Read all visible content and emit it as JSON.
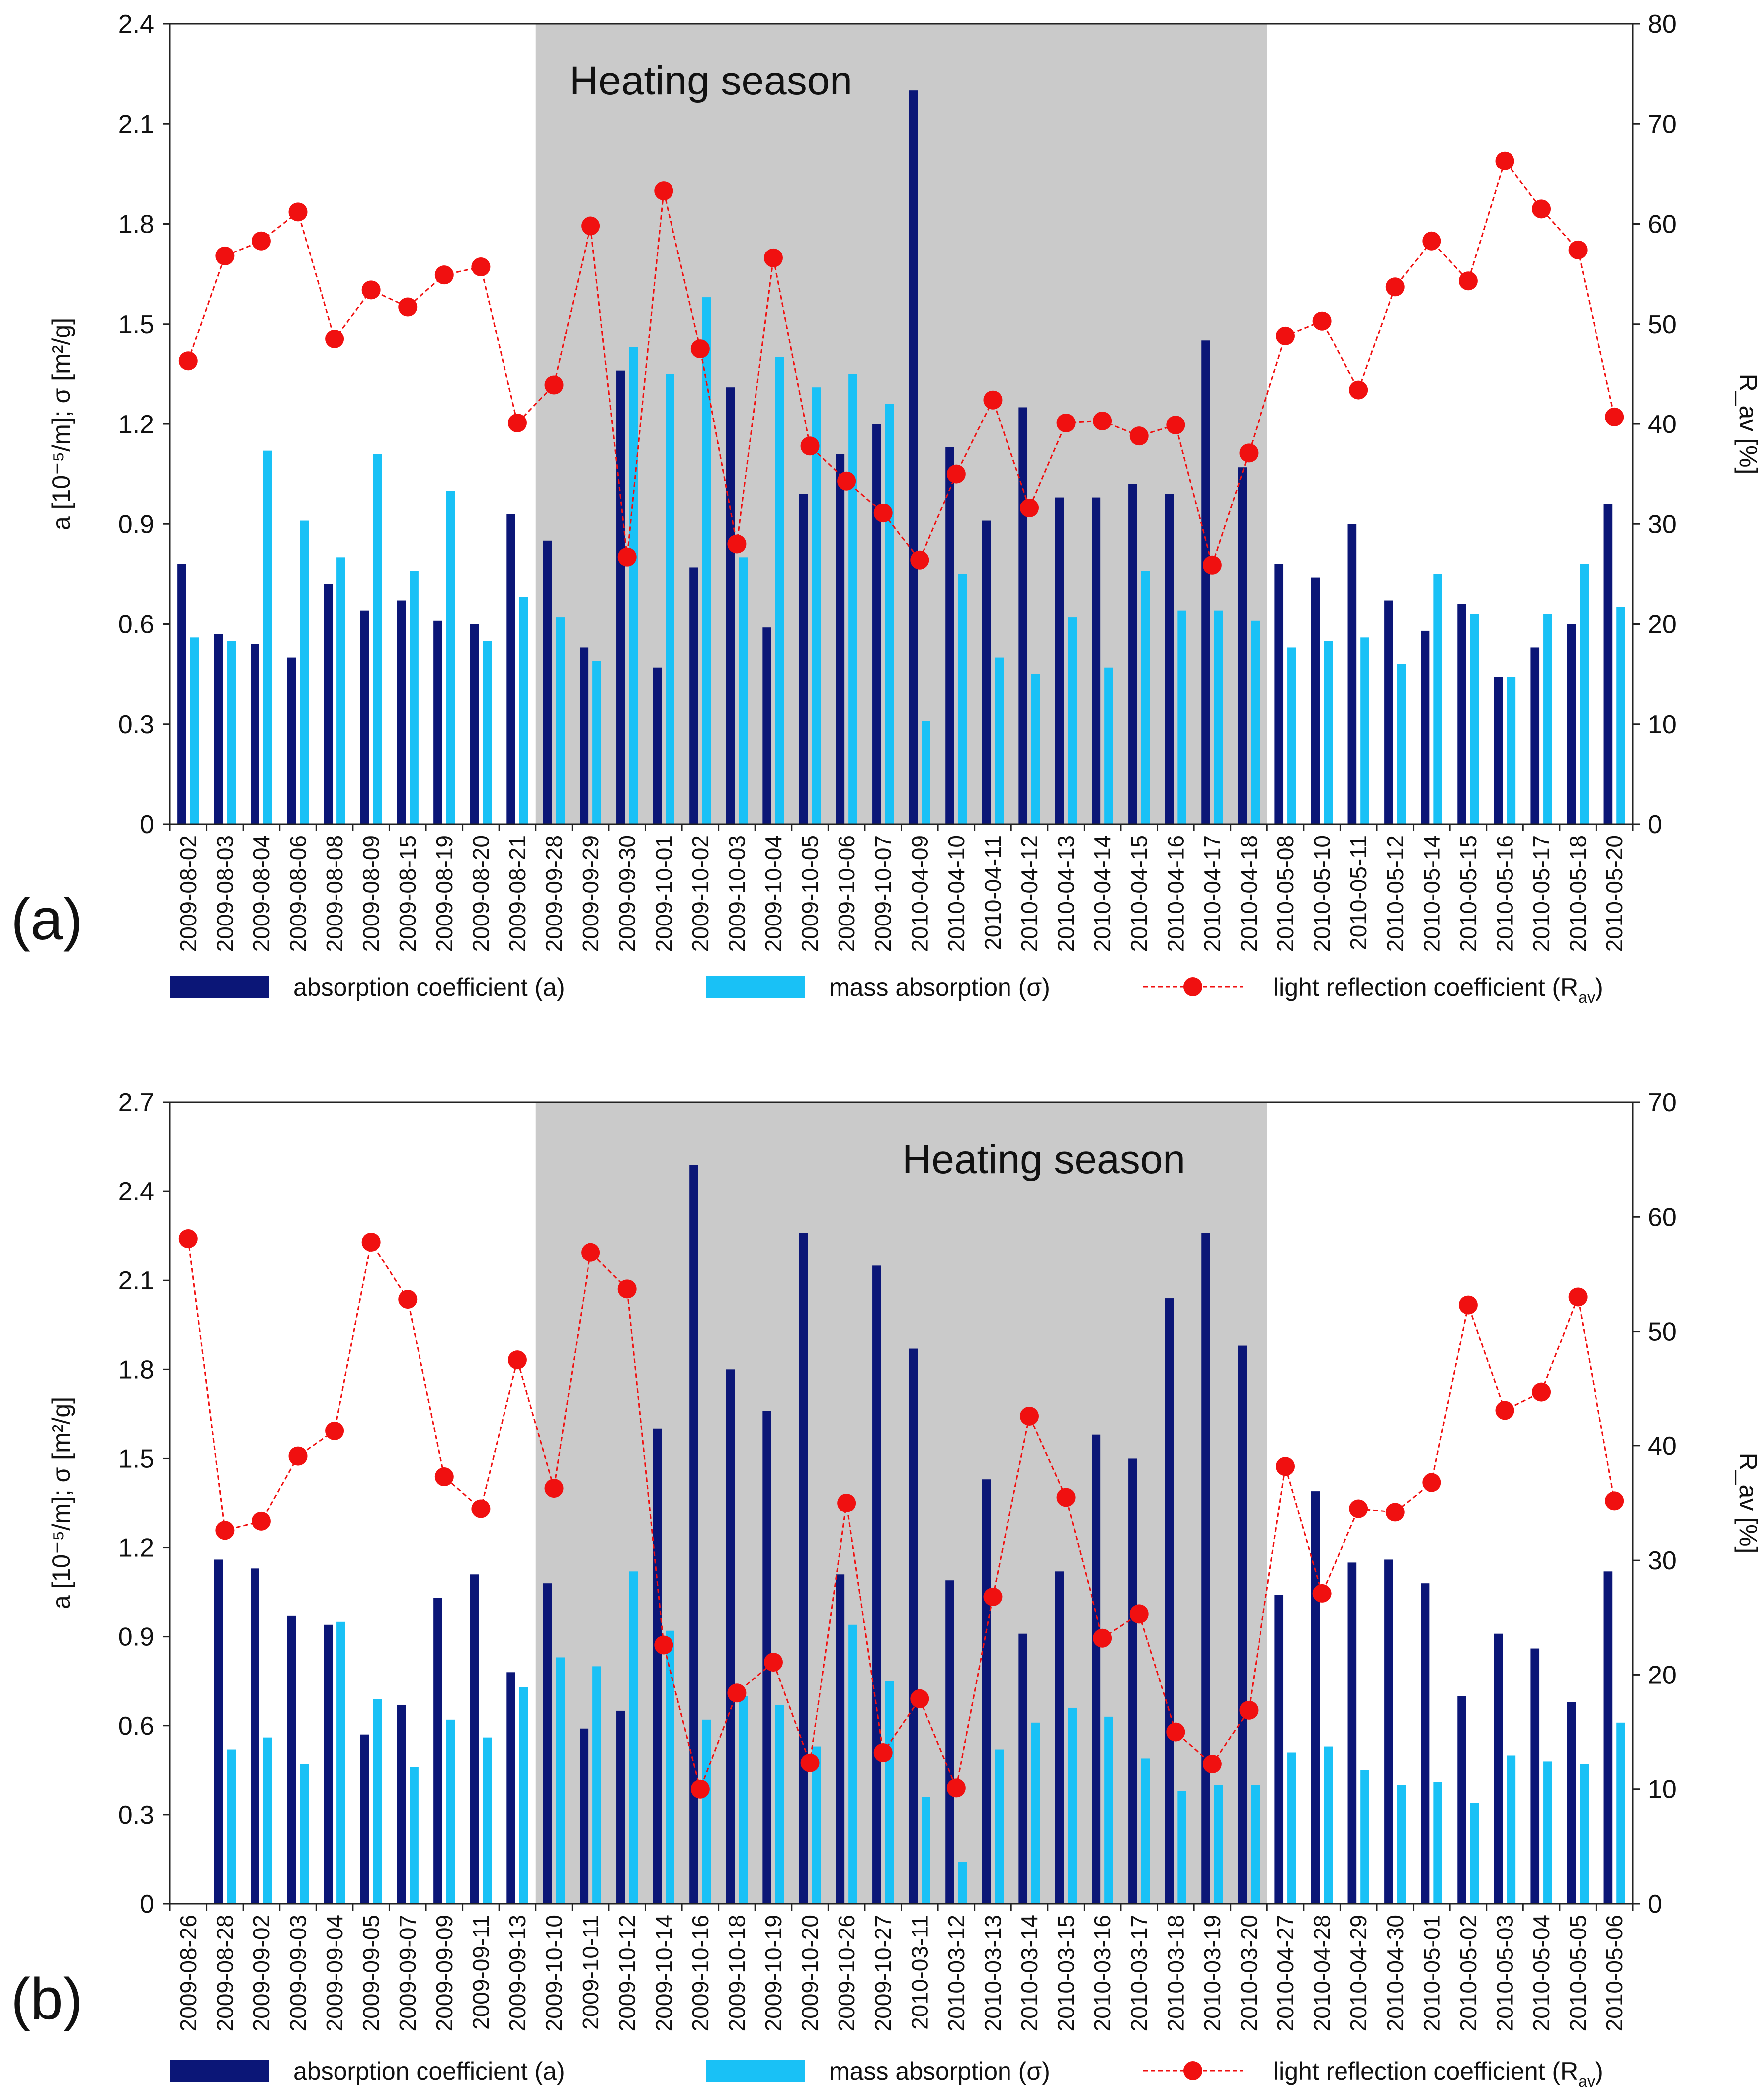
{
  "colors": {
    "absorption": "#0b1677",
    "mass": "#19c1f6",
    "reflection": "#f01010",
    "heating_bg": "#cacaca"
  },
  "legend": {
    "absorption_label": "absorption coefficient  (a)",
    "mass_label": "mass absorption (σ)",
    "reflection_label": "light reflection coefficient (R",
    "reflection_sub": "av",
    "reflection_close": ")"
  },
  "chart_data": [
    {
      "type": "bar",
      "panel_label": "(a)",
      "annotation": "Heating season",
      "ylabel_left": "a [10⁻⁵/m]; σ [m²/g]",
      "ylabel_right": "R_av [%]",
      "ylim_left": [
        0,
        2.4
      ],
      "ylim_right": [
        0,
        80
      ],
      "yticks_left": [
        "0",
        "0.3",
        "0.6",
        "0.9",
        "1.2",
        "1.5",
        "1.8",
        "2.1",
        "2.4"
      ],
      "yticks_right": [
        "0",
        "10",
        "20",
        "30",
        "40",
        "50",
        "60",
        "70",
        "80"
      ],
      "heating_season": {
        "from": "2009-09-28",
        "to": "2010-04-18"
      },
      "categories": [
        "2009-08-02",
        "2009-08-03",
        "2009-08-04",
        "2009-08-06",
        "2009-08-08",
        "2009-08-09",
        "2009-08-15",
        "2009-08-19",
        "2009-08-20",
        "2009-08-21",
        "2009-09-28",
        "2009-09-29",
        "2009-09-30",
        "2009-10-01",
        "2009-10-02",
        "2009-10-03",
        "2009-10-04",
        "2009-10-05",
        "2009-10-06",
        "2009-10-07",
        "2010-04-09",
        "2010-04-10",
        "2010-04-11",
        "2010-04-12",
        "2010-04-13",
        "2010-04-14",
        "2010-04-15",
        "2010-04-16",
        "2010-04-17",
        "2010-04-18",
        "2010-05-08",
        "2010-05-10",
        "2010-05-11",
        "2010-05-12",
        "2010-05-14",
        "2010-05-15",
        "2010-05-16",
        "2010-05-17",
        "2010-05-18",
        "2010-05-20"
      ],
      "series": [
        {
          "name": "absorption coefficient  (a)",
          "axis": "left",
          "values": [
            0.78,
            0.57,
            0.54,
            0.5,
            0.72,
            0.64,
            0.67,
            0.61,
            0.6,
            0.93,
            0.85,
            0.53,
            1.36,
            0.47,
            0.77,
            1.31,
            0.59,
            0.99,
            1.11,
            1.2,
            2.2,
            1.13,
            0.91,
            1.25,
            0.98,
            0.98,
            1.02,
            0.99,
            1.45,
            1.07,
            0.78,
            0.74,
            0.9,
            0.67,
            0.58,
            0.66,
            0.44,
            0.53,
            0.6,
            0.96
          ]
        },
        {
          "name": "mass absorption (σ)",
          "axis": "left",
          "values": [
            0.56,
            0.55,
            1.12,
            0.91,
            0.8,
            1.11,
            0.76,
            1.0,
            0.55,
            0.68,
            0.62,
            0.49,
            1.43,
            1.35,
            1.58,
            0.8,
            1.4,
            1.31,
            1.35,
            1.26,
            0.31,
            0.75,
            0.5,
            0.45,
            0.62,
            0.47,
            0.76,
            0.64,
            0.64,
            0.61,
            0.53,
            0.55,
            0.56,
            0.48,
            0.75,
            0.63,
            0.44,
            0.63,
            0.78,
            0.65
          ]
        },
        {
          "name": "light reflection coefficient (R_av)",
          "axis": "right",
          "values": [
            46.3,
            56.8,
            58.3,
            61.2,
            48.5,
            53.4,
            51.7,
            54.9,
            55.7,
            40.1,
            43.9,
            59.8,
            26.7,
            63.3,
            47.5,
            28.0,
            56.6,
            37.8,
            34.3,
            31.1,
            26.4,
            35.0,
            42.4,
            31.6,
            40.1,
            40.3,
            38.8,
            39.9,
            25.9,
            37.1,
            48.8,
            50.3,
            43.4,
            53.7,
            58.3,
            54.3,
            66.3,
            61.5,
            57.4,
            40.7
          ]
        }
      ]
    },
    {
      "type": "bar",
      "panel_label": "(b)",
      "annotation": "Heating season",
      "ylabel_left": "a [10⁻⁵/m]; σ [m²/g]",
      "ylabel_right": "R_av [%]",
      "ylim_left": [
        0,
        2.7
      ],
      "ylim_right": [
        0,
        70
      ],
      "yticks_left": [
        "0",
        "0.3",
        "0.6",
        "0.9",
        "1.2",
        "1.5",
        "1.8",
        "2.1",
        "2.4",
        "2.7"
      ],
      "yticks_right": [
        "0",
        "10",
        "20",
        "30",
        "40",
        "50",
        "60",
        "70"
      ],
      "heating_season": {
        "from": "2009-10-10",
        "to": "2010-03-20"
      },
      "categories": [
        "2009-08-26",
        "2009-08-28",
        "2009-09-02",
        "2009-09-03",
        "2009-09-04",
        "2009-09-05",
        "2009-09-07",
        "2009-09-09",
        "2009-09-11",
        "2009-09-13",
        "2009-10-10",
        "2009-10-11",
        "2009-10-12",
        "2009-10-14",
        "2009-10-16",
        "2009-10-18",
        "2009-10-19",
        "2009-10-20",
        "2009-10-26",
        "2009-10-27",
        "2010-03-11",
        "2010-03-12",
        "2010-03-13",
        "2010-03-14",
        "2010-03-15",
        "2010-03-16",
        "2010-03-17",
        "2010-03-18",
        "2010-03-19",
        "2010-03-20",
        "2010-04-27",
        "2010-04-28",
        "2010-04-29",
        "2010-04-30",
        "2010-05-01",
        "2010-05-02",
        "2010-05-03",
        "2010-05-04",
        "2010-05-05",
        "2010-05-06"
      ],
      "series": [
        {
          "name": "absorption coefficient  (a)",
          "axis": "left",
          "values": [
            null,
            1.16,
            1.13,
            0.97,
            0.94,
            0.57,
            0.67,
            1.03,
            1.11,
            0.78,
            1.08,
            0.59,
            0.65,
            1.6,
            2.49,
            1.8,
            1.66,
            2.26,
            1.11,
            2.15,
            1.87,
            1.09,
            1.43,
            0.91,
            1.12,
            1.58,
            1.5,
            2.04,
            2.26,
            1.88,
            1.04,
            1.39,
            1.15,
            1.16,
            1.08,
            0.7,
            0.91,
            0.86,
            0.68,
            1.12
          ]
        },
        {
          "name": "mass absorption (σ)",
          "axis": "left",
          "values": [
            null,
            0.52,
            0.56,
            0.47,
            0.95,
            0.69,
            0.46,
            0.62,
            0.56,
            0.73,
            0.83,
            0.8,
            1.12,
            0.92,
            0.62,
            0.7,
            0.67,
            0.53,
            0.94,
            0.75,
            0.36,
            0.14,
            0.52,
            0.61,
            0.66,
            0.63,
            0.49,
            0.38,
            0.4,
            0.4,
            0.51,
            0.53,
            0.45,
            0.4,
            0.41,
            0.34,
            0.5,
            0.48,
            0.47,
            0.61
          ]
        },
        {
          "name": "light reflection coefficient (R_av)",
          "axis": "right",
          "values": [
            58.1,
            32.6,
            33.4,
            39.1,
            41.3,
            57.8,
            52.8,
            37.3,
            34.5,
            47.5,
            36.3,
            56.9,
            53.7,
            22.6,
            10.0,
            18.4,
            21.1,
            12.3,
            35.0,
            13.2,
            17.9,
            10.1,
            26.8,
            42.6,
            35.5,
            23.2,
            25.3,
            15.0,
            12.2,
            16.9,
            38.2,
            27.1,
            34.5,
            34.2,
            36.8,
            52.3,
            43.1,
            44.7,
            53.0,
            35.2
          ]
        }
      ]
    }
  ]
}
